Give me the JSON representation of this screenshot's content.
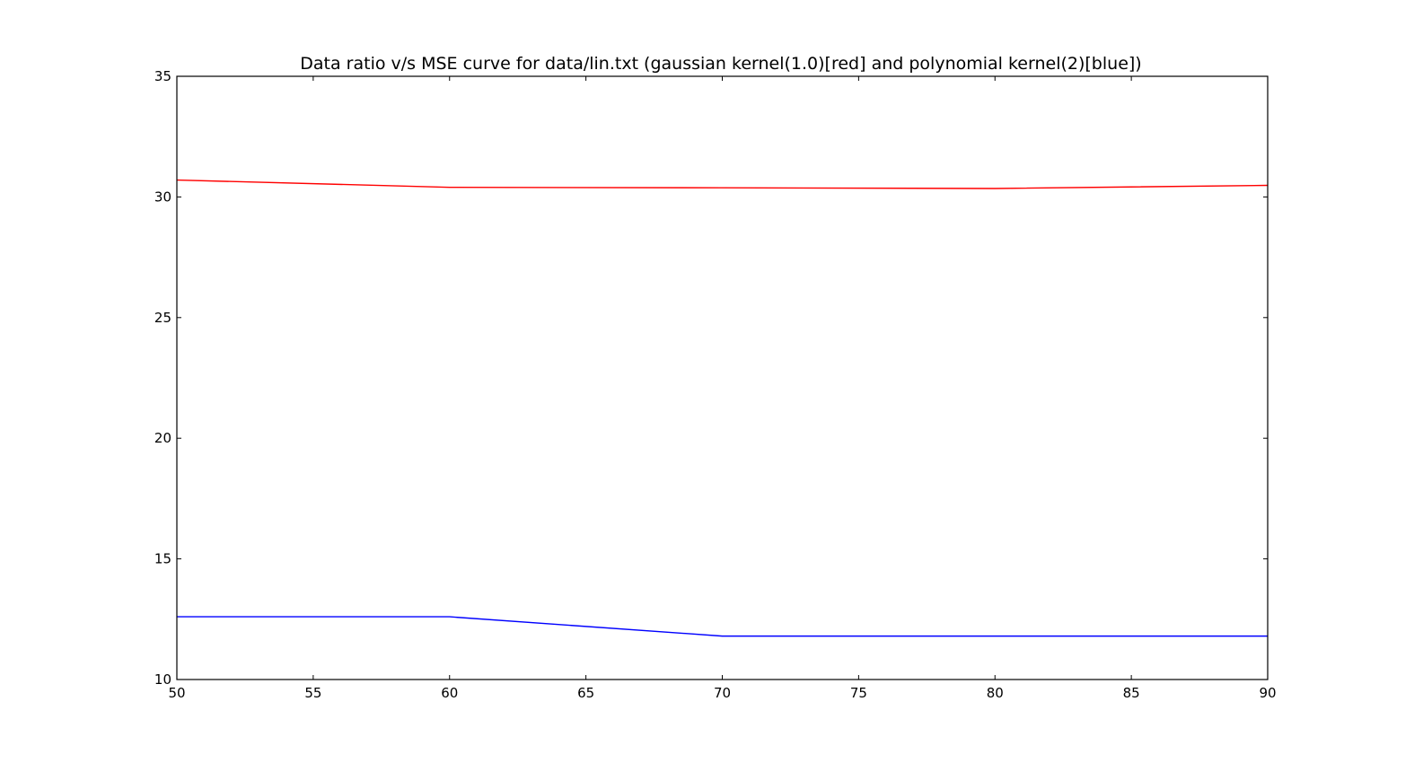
{
  "chart_data": {
    "type": "line",
    "title": "Data ratio v/s MSE curve for data/lin.txt (gaussian kernel(1.0)[red] and polynomial kernel(2)[blue])",
    "xlabel": "",
    "ylabel": "",
    "xlim": [
      50,
      90
    ],
    "ylim": [
      10,
      35
    ],
    "xticks": [
      "50",
      "55",
      "60",
      "65",
      "70",
      "75",
      "80",
      "85",
      "90"
    ],
    "yticks": [
      "10",
      "15",
      "20",
      "25",
      "30",
      "35"
    ],
    "grid": false,
    "legend": "none",
    "series": [
      {
        "color": "#ff0000",
        "x": [
          50,
          60,
          70,
          80,
          90
        ],
        "y": [
          30.7,
          30.4,
          30.38,
          30.35,
          30.48
        ]
      },
      {
        "color": "#0000ff",
        "x": [
          50,
          60,
          70,
          80,
          90
        ],
        "y": [
          12.6,
          12.6,
          11.8,
          11.8,
          11.8
        ]
      }
    ]
  }
}
